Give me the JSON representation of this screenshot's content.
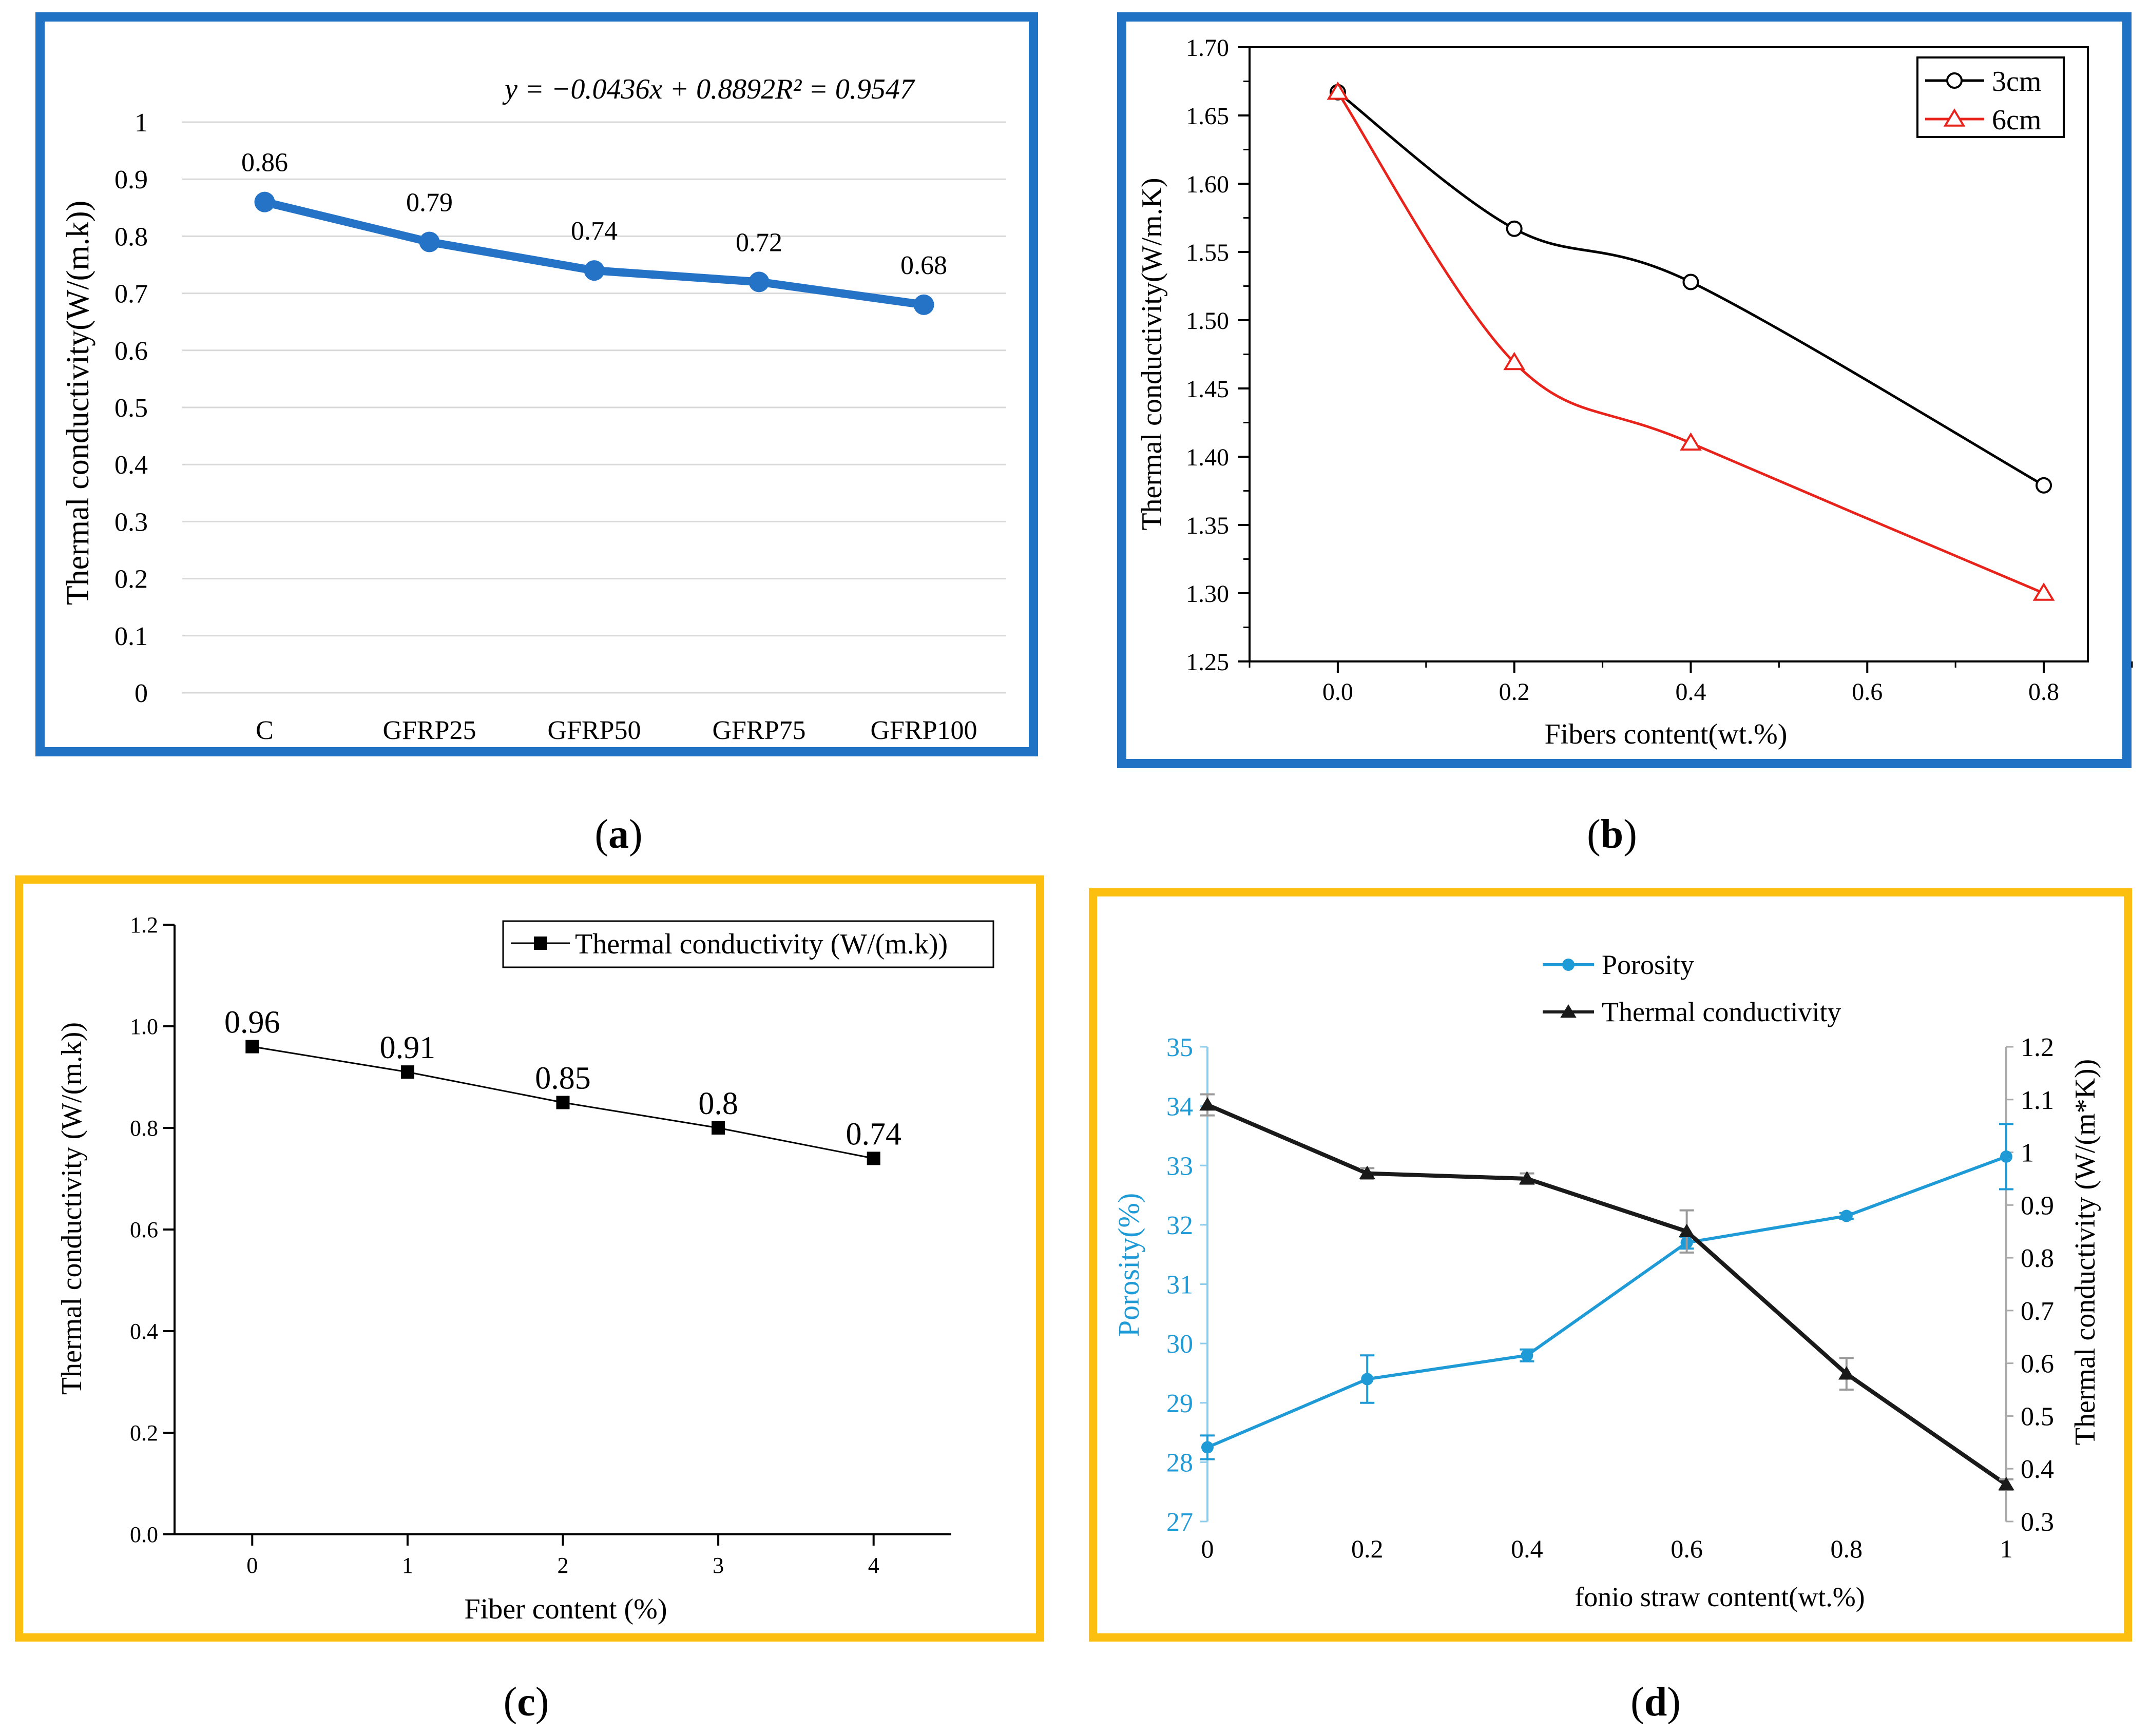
{
  "colors": {
    "panel_a_frame": "#1f72c4",
    "panel_b_frame": "#1f72c4",
    "panel_c_frame": "#fcbf0f",
    "panel_d_frame": "#fcbf0f",
    "line_a": "#2573c6",
    "series_3cm": "#000000",
    "series_6cm": "#e8231c",
    "porosity": "#1e9ad6",
    "thermal_d": "#1a1a1a"
  },
  "captions": {
    "a": {
      "open": "(",
      "letter": "a",
      "close": ")"
    },
    "b": {
      "open": "(",
      "letter": "b",
      "close": ")"
    },
    "c": {
      "open": "(",
      "letter": "c",
      "close": ")"
    },
    "d": {
      "open": "(",
      "letter": "d",
      "close": ")"
    }
  },
  "chart_data": [
    {
      "id": "a",
      "type": "line",
      "title": "",
      "equation": "y = −0.0436x + 0.8892R² = 0.9547",
      "xlabel": "",
      "ylabel": "Thermal conductivity(W/(m.k))",
      "categories": [
        "C",
        "GFRP25",
        "GFRP50",
        "GFRP75",
        "GFRP100"
      ],
      "values": [
        0.86,
        0.79,
        0.74,
        0.72,
        0.68
      ],
      "data_labels": [
        "0.86",
        "0.79",
        "0.74",
        "0.72",
        "0.68"
      ],
      "ylim": [
        0,
        1
      ],
      "yticks": [
        0,
        0.1,
        0.2,
        0.3,
        0.4,
        0.5,
        0.6,
        0.7,
        0.8,
        0.9,
        1
      ],
      "ytick_labels": [
        "0",
        "0.1",
        "0.2",
        "0.3",
        "0.4",
        "0.5",
        "0.6",
        "0.7",
        "0.8",
        "0.9",
        "1"
      ],
      "grid": true
    },
    {
      "id": "b",
      "type": "line",
      "title": "",
      "xlabel": "Fibers content(wt.%)",
      "ylabel": "Thermal conductivity(W/m.K)",
      "xlim": [
        -0.1,
        0.85
      ],
      "ylim": [
        1.25,
        1.7
      ],
      "xticks": [
        0.0,
        0.2,
        0.4,
        0.6,
        0.8
      ],
      "xtick_labels": [
        "0.0",
        "0.2",
        "0.4",
        "0.6",
        "0.8"
      ],
      "yticks": [
        1.25,
        1.3,
        1.35,
        1.4,
        1.45,
        1.5,
        1.55,
        1.6,
        1.65,
        1.7
      ],
      "ytick_labels": [
        "1.25",
        "1.30",
        "1.35",
        "1.40",
        "1.45",
        "1.50",
        "1.55",
        "1.60",
        "1.65",
        "1.70"
      ],
      "legend_position": "top-right",
      "series": [
        {
          "name": "3cm",
          "marker": "circle",
          "x": [
            0.0,
            0.2,
            0.4,
            0.8
          ],
          "values": [
            1.667,
            1.567,
            1.528,
            1.379
          ]
        },
        {
          "name": "6cm",
          "marker": "triangle",
          "x": [
            0.0,
            0.2,
            0.4,
            0.8
          ],
          "values": [
            1.667,
            1.469,
            1.41,
            1.3
          ]
        }
      ]
    },
    {
      "id": "c",
      "type": "line",
      "title": "",
      "xlabel": "Fiber content (%)",
      "ylabel": "Thermal conductivity (W/(m.k))",
      "xlim": [
        -0.5,
        4.5
      ],
      "ylim": [
        0.0,
        1.2
      ],
      "xticks": [
        0,
        1,
        2,
        3,
        4
      ],
      "xtick_labels": [
        "0",
        "1",
        "2",
        "3",
        "4"
      ],
      "yticks": [
        0.0,
        0.2,
        0.4,
        0.6,
        0.8,
        1.0,
        1.2
      ],
      "ytick_labels": [
        "0.0",
        "0.2",
        "0.4",
        "0.6",
        "0.8",
        "1.0",
        "1.2"
      ],
      "legend_position": "top-right",
      "series": [
        {
          "name": "Thermal conductivity (W/(m.k))",
          "marker": "square",
          "x": [
            0,
            1,
            2,
            3,
            4
          ],
          "values": [
            0.96,
            0.91,
            0.85,
            0.8,
            0.74
          ],
          "data_labels": [
            "0.96",
            "0.91",
            "0.85",
            "0.8",
            "0.74"
          ]
        }
      ]
    },
    {
      "id": "d",
      "type": "line",
      "title": "",
      "xlabel": "fonio straw content(wt.%)",
      "ylabel_left": "Porosity(%)",
      "ylabel_right": "Thermal conductivity  (W/(m*K))",
      "xlim": [
        0,
        1
      ],
      "xticks": [
        0,
        0.2,
        0.4,
        0.6,
        0.8,
        1
      ],
      "xtick_labels": [
        "0",
        "0.2",
        "0.4",
        "0.6",
        "0.8",
        "1"
      ],
      "ylim_left": [
        27,
        35
      ],
      "yticks_left": [
        27,
        28,
        29,
        30,
        31,
        32,
        33,
        34,
        35
      ],
      "ytick_labels_left": [
        "27",
        "28",
        "29",
        "30",
        "31",
        "32",
        "33",
        "34",
        "35"
      ],
      "ylim_right": [
        0.3,
        1.2
      ],
      "yticks_right": [
        0.3,
        0.4,
        0.5,
        0.6,
        0.7,
        0.8,
        0.9,
        1.0,
        1.1,
        1.2
      ],
      "ytick_labels_right": [
        "0.3",
        "0.4",
        "0.5",
        "0.6",
        "0.7",
        "0.8",
        "0.9",
        "1",
        "1.1",
        "1.2"
      ],
      "legend_position": "top-center",
      "series": [
        {
          "name": "Porosity",
          "axis": "left",
          "marker": "circle",
          "x": [
            0,
            0.2,
            0.4,
            0.6,
            0.8,
            1
          ],
          "values": [
            28.25,
            29.4,
            29.8,
            31.7,
            32.15,
            33.15
          ],
          "errors": [
            0.2,
            0.4,
            0.1,
            0.1,
            0.05,
            0.55
          ]
        },
        {
          "name": "Thermal conductivity",
          "axis": "right",
          "marker": "triangle",
          "x": [
            0,
            0.2,
            0.4,
            0.6,
            0.8,
            1
          ],
          "values": [
            1.09,
            0.96,
            0.95,
            0.85,
            0.58,
            0.37
          ],
          "errors": [
            0.02,
            0.01,
            0.01,
            0.04,
            0.03,
            0.01
          ]
        }
      ]
    }
  ]
}
